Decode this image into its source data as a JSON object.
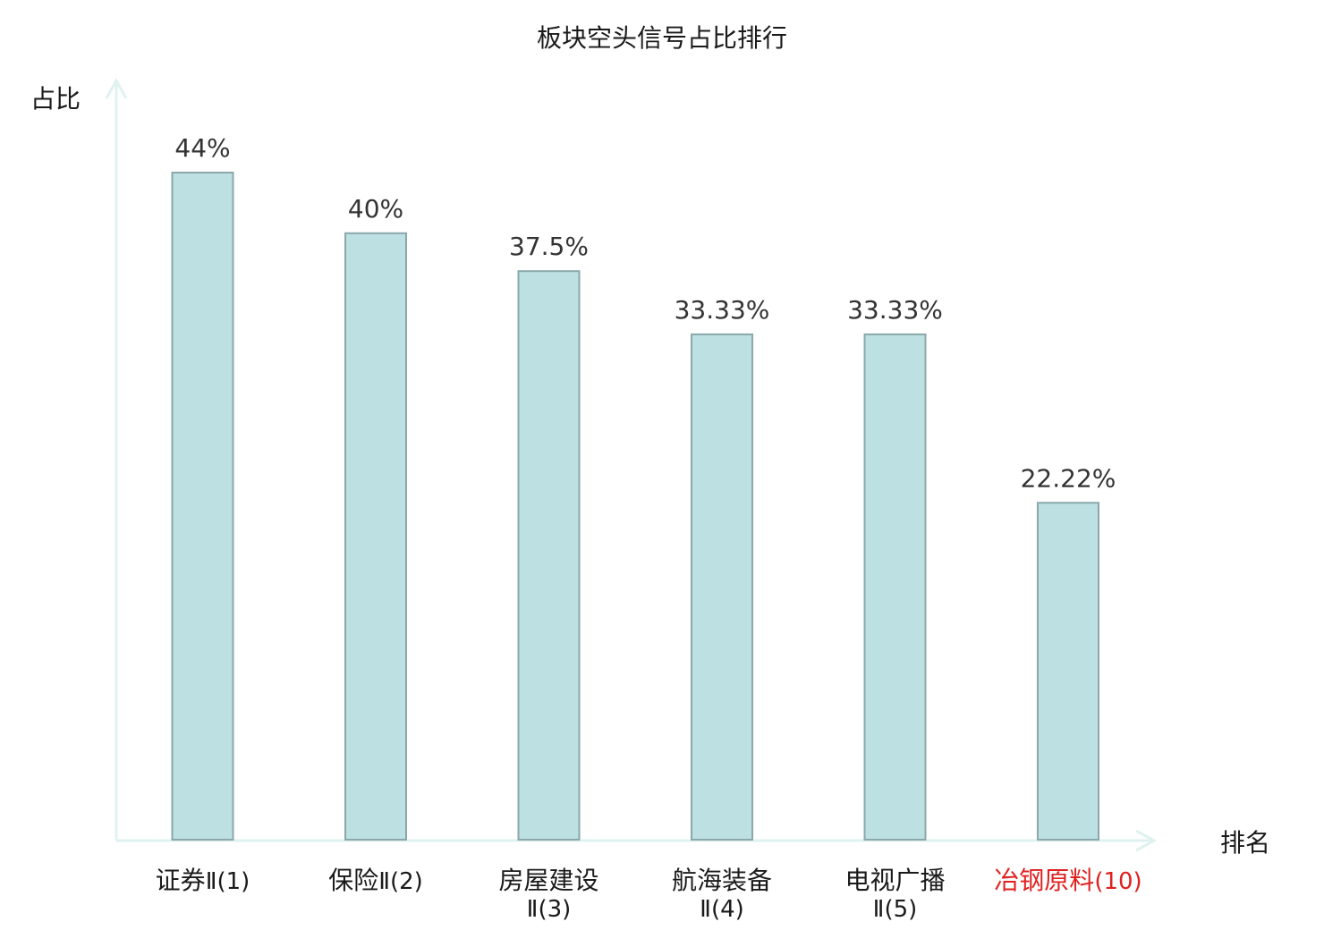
{
  "chart_data": {
    "type": "bar",
    "title": "板块空头信号占比排行",
    "ylabel": "占比",
    "xlabel": "排名",
    "categories": [
      {
        "name": "证券",
        "suffix": "Ⅱ(1)",
        "highlight": false
      },
      {
        "name": "保险",
        "suffix": "Ⅱ(2)",
        "highlight": false
      },
      {
        "name": "房屋建设",
        "suffix": "Ⅱ(3)",
        "highlight": false
      },
      {
        "name": "航海装备",
        "suffix": "Ⅱ(4)",
        "highlight": false
      },
      {
        "name": "电视广播",
        "suffix": "Ⅱ(5)",
        "highlight": false
      },
      {
        "name": "冶钢原料",
        "suffix": "(10)",
        "highlight": true
      }
    ],
    "values": [
      44,
      40,
      37.5,
      33.33,
      33.33,
      22.22
    ],
    "value_labels": [
      "44%",
      "40%",
      "37.5%",
      "33.33%",
      "33.33%",
      "22.22%"
    ],
    "ylim": [
      0,
      44
    ],
    "grid": false,
    "legend": "none"
  },
  "colors": {
    "bar_fill": "#bde0e3",
    "bar_stroke": "#8aa8aa",
    "axis": "#e0f2f0",
    "label": "#1a1a1a",
    "value_label": "#333333",
    "highlight": "#e02020"
  }
}
